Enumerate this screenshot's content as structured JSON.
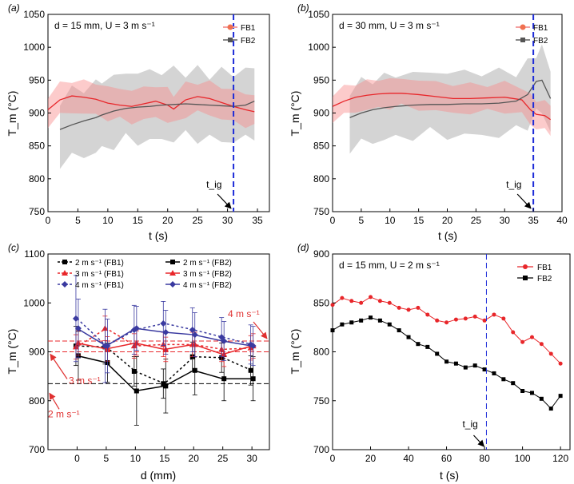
{
  "chart_data": [
    {
      "panel": "(a)",
      "type": "line",
      "annotation": "d = 15 mm, U = 3 m s⁻¹",
      "xlabel": "t (s)",
      "ylabel": "T_m (°C)",
      "xlim": [
        0,
        37
      ],
      "ylim": [
        750,
        1050
      ],
      "xticks": [
        0,
        5,
        10,
        15,
        20,
        25,
        30,
        35
      ],
      "yticks": [
        750,
        800,
        850,
        900,
        950,
        1000,
        1050
      ],
      "t_ig": 31,
      "t_ig_label": "t_ig",
      "series": [
        {
          "name": "FB1",
          "color": "#e8262a",
          "x": [
            0,
            2,
            4,
            6,
            8,
            10,
            12,
            14,
            16,
            18,
            20,
            21,
            23,
            25,
            27,
            29,
            31,
            33,
            34.5
          ],
          "values": [
            905,
            920,
            926,
            924,
            921,
            915,
            912,
            910,
            914,
            918,
            912,
            906,
            920,
            925,
            922,
            916,
            910,
            905,
            902
          ],
          "band": 28
        },
        {
          "name": "FB2",
          "color": "#555555",
          "x": [
            2,
            4,
            6,
            8,
            9,
            11,
            13,
            15,
            17,
            19,
            21,
            23,
            25,
            27,
            29,
            31,
            33,
            34.5
          ],
          "values": [
            875,
            882,
            888,
            893,
            897,
            903,
            907,
            909,
            910,
            912,
            913,
            914,
            913,
            912,
            911,
            910,
            912,
            918
          ],
          "band": 60
        }
      ]
    },
    {
      "panel": "(b)",
      "type": "line",
      "annotation": "d = 30 mm, U = 3 m s⁻¹",
      "xlabel": "t (s)",
      "ylabel": "T_m (°C)",
      "xlim": [
        0,
        40
      ],
      "ylim": [
        750,
        1050
      ],
      "xticks": [
        0,
        5,
        10,
        15,
        20,
        25,
        30,
        35,
        40
      ],
      "yticks": [
        750,
        800,
        850,
        900,
        950,
        1000,
        1050
      ],
      "t_ig": 35,
      "t_ig_label": "t_ig",
      "series": [
        {
          "name": "FB1",
          "color": "#e8262a",
          "x": [
            0,
            2,
            4,
            6,
            8,
            10,
            12,
            15,
            18,
            21,
            24,
            27,
            30,
            33,
            34.5,
            35.5,
            37,
            38
          ],
          "values": [
            910,
            918,
            924,
            927,
            929,
            930,
            930,
            928,
            925,
            922,
            922,
            923,
            924,
            920,
            905,
            898,
            896,
            890
          ],
          "band": 25
        },
        {
          "name": "FB2",
          "color": "#555555",
          "x": [
            3,
            5,
            7,
            9,
            11,
            14,
            17,
            20,
            23,
            26,
            29,
            32,
            34,
            35.5,
            36.5,
            38
          ],
          "values": [
            893,
            900,
            905,
            908,
            910,
            912,
            913,
            913,
            914,
            914,
            915,
            918,
            928,
            948,
            950,
            922
          ],
          "band": 55
        }
      ]
    },
    {
      "panel": "(c)",
      "type": "line",
      "xlabel": "d (mm)",
      "ylabel": "T_m (°C)",
      "xlim": [
        -5,
        33
      ],
      "ylim": [
        700,
        1100
      ],
      "xticks": [
        0,
        5,
        10,
        15,
        20,
        25,
        30
      ],
      "yticks": [
        700,
        800,
        900,
        1000,
        1100
      ],
      "x": [
        0,
        5,
        10,
        15,
        20,
        25,
        30
      ],
      "reference_lines": [
        {
          "label": "2 m s⁻¹",
          "value": 835,
          "color": "#000000"
        },
        {
          "label": "3 m s⁻¹",
          "value": 900,
          "color": "#e8262a"
        },
        {
          "label": "4 m s⁻¹",
          "value": 922,
          "color": "#e8262a"
        }
      ],
      "series": [
        {
          "name": "2 m s⁻¹ (FB1)",
          "color": "#000000",
          "dashed": true,
          "marker": "square",
          "values": [
            912,
            910,
            860,
            835,
            890,
            888,
            862
          ],
          "err": [
            40,
            35,
            30,
            30,
            30,
            30,
            30
          ]
        },
        {
          "name": "2 m s⁻¹ (FB2)",
          "color": "#000000",
          "dashed": false,
          "marker": "square",
          "values": [
            892,
            878,
            820,
            830,
            862,
            845,
            845
          ],
          "err": [
            50,
            40,
            70,
            55,
            50,
            45,
            45
          ]
        },
        {
          "name": "3 m s⁻¹ (FB1)",
          "color": "#e8262a",
          "dashed": true,
          "marker": "triangle",
          "values": [
            910,
            948,
            912,
            915,
            915,
            905,
            908
          ],
          "err": [
            25,
            25,
            25,
            25,
            25,
            25,
            25
          ]
        },
        {
          "name": "3 m s⁻¹ (FB2)",
          "color": "#e8262a",
          "dashed": false,
          "marker": "triangle",
          "values": [
            918,
            906,
            918,
            905,
            915,
            895,
            912
          ],
          "err": [
            25,
            25,
            25,
            25,
            25,
            25,
            25
          ]
        },
        {
          "name": "4 m s⁻¹ (FB1)",
          "color": "#3a3aa0",
          "dashed": true,
          "marker": "diamond",
          "values": [
            968,
            912,
            945,
            958,
            945,
            930,
            915
          ],
          "err": [
            88,
            75,
            50,
            45,
            45,
            40,
            40
          ]
        },
        {
          "name": "4 m s⁻¹ (FB2)",
          "color": "#3a3aa0",
          "dashed": false,
          "marker": "diamond",
          "values": [
            948,
            912,
            948,
            940,
            935,
            922,
            912
          ],
          "err": [
            60,
            55,
            45,
            45,
            45,
            40,
            40
          ]
        }
      ]
    },
    {
      "panel": "(d)",
      "type": "line",
      "annotation": "d = 15 mm, U = 2 m s⁻¹",
      "xlabel": "t (s)",
      "ylabel": "T_m (°C)",
      "xlim": [
        0,
        125
      ],
      "ylim": [
        700,
        900
      ],
      "xticks": [
        0,
        20,
        40,
        60,
        80,
        100,
        120
      ],
      "yticks": [
        700,
        750,
        800,
        850,
        900
      ],
      "t_ig": 81,
      "t_ig_label": "t_ig",
      "series": [
        {
          "name": "FB1",
          "color": "#e8262a",
          "marker": "circle",
          "x": [
            0,
            5,
            10,
            15,
            20,
            25,
            30,
            35,
            40,
            45,
            50,
            55,
            60,
            65,
            70,
            75,
            80,
            85,
            90,
            95,
            100,
            105,
            110,
            115,
            120
          ],
          "values": [
            848,
            855,
            852,
            850,
            856,
            852,
            850,
            845,
            843,
            845,
            838,
            832,
            830,
            833,
            834,
            836,
            832,
            838,
            834,
            820,
            810,
            815,
            808,
            798,
            788
          ]
        },
        {
          "name": "FB2",
          "color": "#000000",
          "marker": "square",
          "x": [
            0,
            5,
            10,
            15,
            20,
            25,
            30,
            35,
            40,
            45,
            50,
            55,
            60,
            65,
            70,
            75,
            80,
            85,
            90,
            95,
            100,
            105,
            110,
            115,
            120
          ],
          "values": [
            822,
            828,
            830,
            832,
            835,
            832,
            828,
            822,
            815,
            808,
            805,
            798,
            790,
            788,
            784,
            786,
            782,
            778,
            772,
            768,
            760,
            758,
            752,
            742,
            755
          ]
        }
      ]
    }
  ]
}
